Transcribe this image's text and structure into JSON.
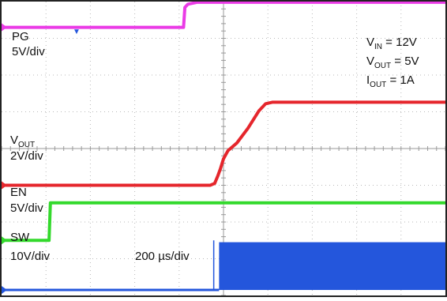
{
  "chart_data": {
    "type": "line",
    "title": "",
    "timebase": "200 µs/div",
    "conditions": [
      {
        "main": "V",
        "sub": "IN",
        "rest": " = 12V"
      },
      {
        "main": "V",
        "sub": "OUT",
        "rest": " = 5V"
      },
      {
        "main": "I",
        "sub": "OUT",
        "rest": " = 1A"
      }
    ],
    "trigger_marker": "▼",
    "x_divisions": 10,
    "y_divisions": 8,
    "series": [
      {
        "name": "PG",
        "name_sub": "",
        "scale": "5V/div",
        "unit_per_div": 5,
        "color": "#ea3be6",
        "points_div": [
          [
            -5,
            3.3
          ],
          [
            -0.9,
            3.3
          ],
          [
            -0.87,
            3.84
          ],
          [
            -0.8,
            3.93
          ],
          [
            -0.6,
            3.98
          ],
          [
            5,
            3.98
          ]
        ]
      },
      {
        "name": "V",
        "name_sub": "OUT",
        "scale": "2V/div",
        "unit_per_div": 2,
        "color": "#e5262c",
        "points_div": [
          [
            -5,
            -1.0
          ],
          [
            -0.3,
            -1.0
          ],
          [
            -0.2,
            -0.95
          ],
          [
            -0.13,
            -0.75
          ],
          [
            -0.07,
            -0.55
          ],
          [
            0,
            -0.28
          ],
          [
            0.1,
            -0.06
          ],
          [
            0.3,
            0.15
          ],
          [
            0.55,
            0.55
          ],
          [
            0.8,
            1.03
          ],
          [
            0.95,
            1.22
          ],
          [
            1.1,
            1.26
          ],
          [
            5,
            1.26
          ]
        ]
      },
      {
        "name": "EN",
        "name_sub": "",
        "scale": "5V/div",
        "unit_per_div": 5,
        "color": "#33d92c",
        "points_div": [
          [
            -5,
            -2.5
          ],
          [
            -3.93,
            -2.5
          ],
          [
            -3.9,
            -1.48
          ],
          [
            5,
            -1.48
          ]
        ]
      },
      {
        "name": "SW",
        "name_sub": "",
        "scale": "10V/div",
        "unit_per_div": 10,
        "color": "#2456dc",
        "points_div": [
          [
            -5,
            -3.85
          ],
          [
            -0.1,
            -3.85
          ],
          [
            -0.1,
            -2.55
          ],
          [
            5,
            -2.55
          ]
        ]
      }
    ]
  }
}
